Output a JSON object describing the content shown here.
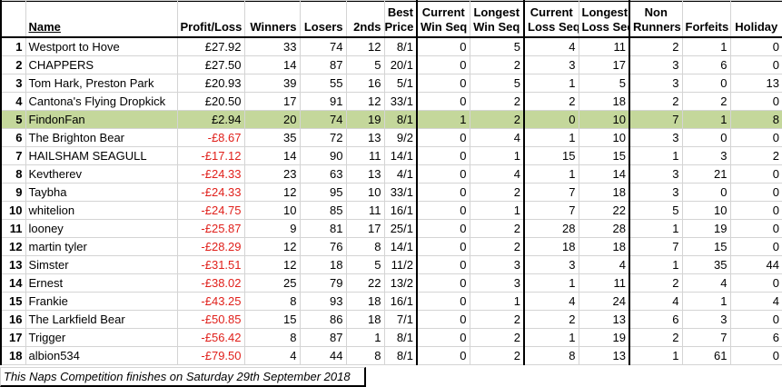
{
  "headers": {
    "name": "Name",
    "profit": "Profit/Loss",
    "winners": "Winners",
    "losers": "Losers",
    "seconds": "2nds",
    "best_price": [
      "Best",
      "Price"
    ],
    "current_win_seq": [
      "Current",
      "Win Seq"
    ],
    "longest_win_seq": [
      "Longest",
      "Win Seq"
    ],
    "current_loss_seq": [
      "Current",
      "Loss Seq"
    ],
    "longest_loss_seq": [
      "Longest",
      "Loss Seq"
    ],
    "non_runners": [
      "Non",
      "Runners"
    ],
    "forfeits": "Forfeits",
    "holiday": "Holiday"
  },
  "rows": [
    {
      "pos": "1",
      "name": "Westport to Hove",
      "profit": "£27.92",
      "winners": "33",
      "losers": "74",
      "seconds": "12",
      "best_price": "8/1",
      "cur_win": "0",
      "long_win": "5",
      "cur_loss": "4",
      "long_loss": "11",
      "non_runners": "2",
      "forfeits": "1",
      "holiday": "0"
    },
    {
      "pos": "2",
      "name": "CHAPPERS",
      "profit": "£27.50",
      "winners": "14",
      "losers": "87",
      "seconds": "5",
      "best_price": "20/1",
      "cur_win": "0",
      "long_win": "2",
      "cur_loss": "3",
      "long_loss": "17",
      "non_runners": "3",
      "forfeits": "6",
      "holiday": "0"
    },
    {
      "pos": "3",
      "name": "Tom Hark, Preston Park",
      "profit": "£20.93",
      "winners": "39",
      "losers": "55",
      "seconds": "16",
      "best_price": "5/1",
      "cur_win": "0",
      "long_win": "5",
      "cur_loss": "1",
      "long_loss": "5",
      "non_runners": "3",
      "forfeits": "0",
      "holiday": "13"
    },
    {
      "pos": "4",
      "name": "Cantona's Flying Dropkick",
      "profit": "£20.50",
      "winners": "17",
      "losers": "91",
      "seconds": "12",
      "best_price": "33/1",
      "cur_win": "0",
      "long_win": "2",
      "cur_loss": "2",
      "long_loss": "18",
      "non_runners": "2",
      "forfeits": "2",
      "holiday": "0"
    },
    {
      "pos": "5",
      "name": "FindonFan",
      "profit": "£2.94",
      "winners": "20",
      "losers": "74",
      "seconds": "19",
      "best_price": "8/1",
      "cur_win": "1",
      "long_win": "2",
      "cur_loss": "0",
      "long_loss": "10",
      "non_runners": "7",
      "forfeits": "1",
      "holiday": "8"
    },
    {
      "pos": "6",
      "name": "The Brighton Bear",
      "profit": "-£8.67",
      "winners": "35",
      "losers": "72",
      "seconds": "13",
      "best_price": "9/2",
      "cur_win": "0",
      "long_win": "4",
      "cur_loss": "1",
      "long_loss": "10",
      "non_runners": "3",
      "forfeits": "0",
      "holiday": "0"
    },
    {
      "pos": "7",
      "name": "HAILSHAM SEAGULL",
      "profit": "-£17.12",
      "winners": "14",
      "losers": "90",
      "seconds": "11",
      "best_price": "14/1",
      "cur_win": "0",
      "long_win": "1",
      "cur_loss": "15",
      "long_loss": "15",
      "non_runners": "1",
      "forfeits": "3",
      "holiday": "2"
    },
    {
      "pos": "8",
      "name": "Kevtherev",
      "profit": "-£24.33",
      "winners": "23",
      "losers": "63",
      "seconds": "13",
      "best_price": "4/1",
      "cur_win": "0",
      "long_win": "4",
      "cur_loss": "1",
      "long_loss": "14",
      "non_runners": "3",
      "forfeits": "21",
      "holiday": "0"
    },
    {
      "pos": "9",
      "name": "Taybha",
      "profit": "-£24.33",
      "winners": "12",
      "losers": "95",
      "seconds": "10",
      "best_price": "33/1",
      "cur_win": "0",
      "long_win": "2",
      "cur_loss": "7",
      "long_loss": "18",
      "non_runners": "3",
      "forfeits": "0",
      "holiday": "0"
    },
    {
      "pos": "10",
      "name": "whitelion",
      "profit": "-£24.75",
      "winners": "10",
      "losers": "85",
      "seconds": "11",
      "best_price": "16/1",
      "cur_win": "0",
      "long_win": "1",
      "cur_loss": "7",
      "long_loss": "22",
      "non_runners": "5",
      "forfeits": "10",
      "holiday": "0"
    },
    {
      "pos": "11",
      "name": "looney",
      "profit": "-£25.87",
      "winners": "9",
      "losers": "81",
      "seconds": "17",
      "best_price": "25/1",
      "cur_win": "0",
      "long_win": "2",
      "cur_loss": "28",
      "long_loss": "28",
      "non_runners": "1",
      "forfeits": "19",
      "holiday": "0"
    },
    {
      "pos": "12",
      "name": "martin tyler",
      "profit": "-£28.29",
      "winners": "12",
      "losers": "76",
      "seconds": "8",
      "best_price": "14/1",
      "cur_win": "0",
      "long_win": "2",
      "cur_loss": "18",
      "long_loss": "18",
      "non_runners": "7",
      "forfeits": "15",
      "holiday": "0"
    },
    {
      "pos": "13",
      "name": "Simster",
      "profit": "-£31.51",
      "winners": "12",
      "losers": "18",
      "seconds": "5",
      "best_price": "11/2",
      "cur_win": "0",
      "long_win": "3",
      "cur_loss": "3",
      "long_loss": "4",
      "non_runners": "1",
      "forfeits": "35",
      "holiday": "44"
    },
    {
      "pos": "14",
      "name": "Ernest",
      "profit": "-£38.02",
      "winners": "25",
      "losers": "79",
      "seconds": "22",
      "best_price": "13/2",
      "cur_win": "0",
      "long_win": "3",
      "cur_loss": "1",
      "long_loss": "11",
      "non_runners": "2",
      "forfeits": "4",
      "holiday": "0"
    },
    {
      "pos": "15",
      "name": "Frankie",
      "profit": "-£43.25",
      "winners": "8",
      "losers": "93",
      "seconds": "18",
      "best_price": "16/1",
      "cur_win": "0",
      "long_win": "1",
      "cur_loss": "4",
      "long_loss": "24",
      "non_runners": "4",
      "forfeits": "1",
      "holiday": "4"
    },
    {
      "pos": "16",
      "name": "The Larkfield Bear",
      "profit": "-£50.85",
      "winners": "15",
      "losers": "86",
      "seconds": "18",
      "best_price": "7/1",
      "cur_win": "0",
      "long_win": "2",
      "cur_loss": "2",
      "long_loss": "13",
      "non_runners": "6",
      "forfeits": "3",
      "holiday": "0"
    },
    {
      "pos": "17",
      "name": "Trigger",
      "profit": "-£56.42",
      "winners": "8",
      "losers": "87",
      "seconds": "1",
      "best_price": "8/1",
      "cur_win": "0",
      "long_win": "2",
      "cur_loss": "1",
      "long_loss": "19",
      "non_runners": "2",
      "forfeits": "7",
      "holiday": "6"
    },
    {
      "pos": "18",
      "name": "albion534",
      "profit": "-£79.50",
      "winners": "4",
      "losers": "44",
      "seconds": "8",
      "best_price": "8/1",
      "cur_win": "0",
      "long_win": "2",
      "cur_loss": "8",
      "long_loss": "13",
      "non_runners": "1",
      "forfeits": "61",
      "holiday": "0"
    }
  ],
  "footer": "This Naps Competition finishes on Saturday 29th September 2018",
  "colors": {
    "highlight_row": "#c4d79b",
    "negative_text": "#e0201b",
    "gridline": "#d4d4d4"
  }
}
